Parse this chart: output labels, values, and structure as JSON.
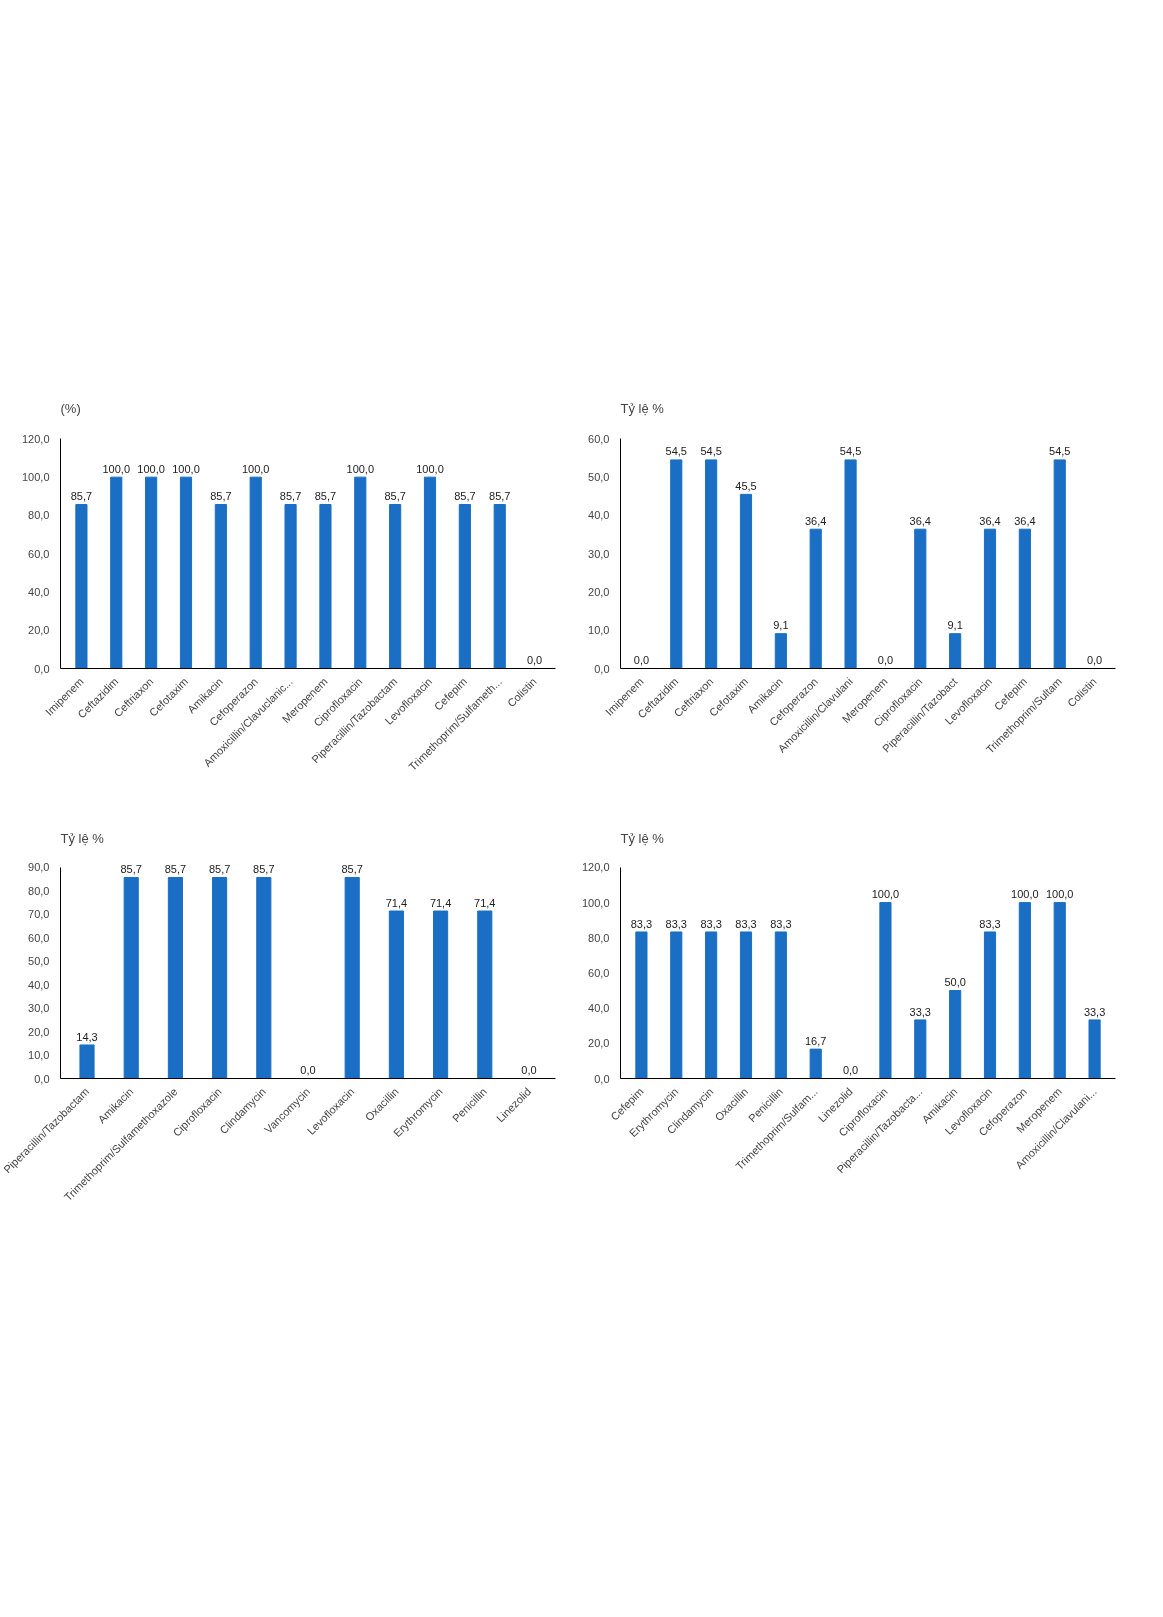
{
  "chart_data": [
    {
      "type": "bar",
      "ylabel": "(%)",
      "categories": [
        "Imipenem",
        "Ceftazidim",
        "Ceftriaxon",
        "Cefotaxim",
        "Amikacin",
        "Cefoperazon",
        "Amoxicillin/Clavuclanic...",
        "Meropenem",
        "Ciprofloxacin",
        "Piperacillin/Tazobactam",
        "Levofloxacin",
        "Cefepim",
        "Trimethoprim/Sulfameth...",
        "Colistin"
      ],
      "values": [
        85.7,
        100,
        100,
        100,
        85.7,
        100,
        85.7,
        85.7,
        100,
        85.7,
        100,
        85.7,
        85.7,
        0
      ],
      "value_labels": [
        "85,7",
        "100,0",
        "100,0",
        "100,0",
        "85,7",
        "100,0",
        "85,7",
        "85,7",
        "100,0",
        "85,7",
        "100,0",
        "85,7",
        "85,7",
        "0,0"
      ],
      "color": "#1a6fc4",
      "ylim": [
        0,
        120
      ],
      "yticks": [
        {
          "value": 0,
          "label": "0,0"
        },
        {
          "value": 20,
          "label": "20,0"
        },
        {
          "value": 40,
          "label": "40,0"
        },
        {
          "value": 60,
          "label": "60,0"
        },
        {
          "value": 80,
          "label": "80,0"
        },
        {
          "value": 100,
          "label": "100,0"
        },
        {
          "value": 120,
          "label": "120,0"
        }
      ]
    },
    {
      "type": "bar",
      "ylabel": "Tỷ lệ %",
      "categories": [
        "Imipenem",
        "Ceftazidim",
        "Ceftriaxon",
        "Cefotaxim",
        "Amikacin",
        "Cefoperazon",
        "Amoxicillin/Clavulani",
        "Meropenem",
        "Ciprofloxacin",
        "Piperacillin/Tazobact",
        "Levofloxacin",
        "Cefepim",
        "Trimethoprim/Sultam",
        "Colistin"
      ],
      "values": [
        0,
        54.5,
        54.5,
        45.5,
        9.1,
        36.4,
        54.5,
        0,
        36.4,
        9.1,
        36.4,
        36.4,
        54.5,
        0
      ],
      "value_labels": [
        "0,0",
        "54,5",
        "54,5",
        "45,5",
        "9,1",
        "36,4",
        "54,5",
        "0,0",
        "36,4",
        "9,1",
        "36,4",
        "36,4",
        "54,5",
        "0,0"
      ],
      "color": "#1a6fc4",
      "ylim": [
        0,
        60
      ],
      "yticks": [
        {
          "value": 0,
          "label": "0,0"
        },
        {
          "value": 10,
          "label": "10,0"
        },
        {
          "value": 20,
          "label": "20,0"
        },
        {
          "value": 30,
          "label": "30,0"
        },
        {
          "value": 40,
          "label": "40,0"
        },
        {
          "value": 50,
          "label": "50,0"
        },
        {
          "value": 60,
          "label": "60,0"
        }
      ]
    },
    {
      "type": "bar",
      "ylabel": "Tỷ lệ %",
      "categories": [
        "Piperacillin/Tazobactam",
        "Amikacin",
        "Trimethoprim/Sulfamethoxazole",
        "Ciprofloxacin",
        "Clindamycin",
        "Vancomycin",
        "Levofloxacin",
        "Oxacillin",
        "Erythromycin",
        "Penicillin",
        "Linezolid"
      ],
      "values": [
        14.3,
        85.7,
        85.7,
        85.7,
        85.7,
        0,
        85.7,
        71.4,
        71.4,
        71.4,
        0
      ],
      "value_labels": [
        "14,3",
        "85,7",
        "85,7",
        "85,7",
        "85,7",
        "0,0",
        "85,7",
        "71,4",
        "71,4",
        "71,4",
        "0,0"
      ],
      "color": "#1a6fc4",
      "ylim": [
        0,
        90
      ],
      "yticks": [
        {
          "value": 0,
          "label": "0,0"
        },
        {
          "value": 10,
          "label": "10,0"
        },
        {
          "value": 20,
          "label": "20,0"
        },
        {
          "value": 30,
          "label": "30,0"
        },
        {
          "value": 40,
          "label": "40,0"
        },
        {
          "value": 50,
          "label": "50,0"
        },
        {
          "value": 60,
          "label": "60,0"
        },
        {
          "value": 70,
          "label": "70,0"
        },
        {
          "value": 80,
          "label": "80,0"
        },
        {
          "value": 90,
          "label": "90,0"
        }
      ]
    },
    {
      "type": "bar",
      "ylabel": "Tỷ lệ %",
      "categories": [
        "Cefepim",
        "Erythromycin",
        "Clindamycin",
        "Oxacillin",
        "Penicillin",
        "Trimethoprim/Sulfam...",
        "Linezolid",
        "Ciprofloxacin",
        "Piperacillin/Tazobacta...",
        "Amikacin",
        "Levofloxacin",
        "Cefoperazon",
        "Meropenem",
        "Amoxicillin/Clavulani..."
      ],
      "values": [
        83.3,
        83.3,
        83.3,
        83.3,
        83.3,
        16.7,
        0,
        100,
        33.3,
        50,
        83.3,
        100,
        100,
        33.3
      ],
      "value_labels": [
        "83,3",
        "83,3",
        "83,3",
        "83,3",
        "83,3",
        "16,7",
        "0,0",
        "100,0",
        "33,3",
        "50,0",
        "83,3",
        "100,0",
        "100,0",
        "33,3"
      ],
      "color": "#1a6fc4",
      "ylim": [
        0,
        120
      ],
      "yticks": [
        {
          "value": 0,
          "label": "0,0"
        },
        {
          "value": 20,
          "label": "20,0"
        },
        {
          "value": 40,
          "label": "40,0"
        },
        {
          "value": 60,
          "label": "60,0"
        },
        {
          "value": 80,
          "label": "80,0"
        },
        {
          "value": 100,
          "label": "100,0"
        },
        {
          "value": 120,
          "label": "120,0"
        }
      ]
    }
  ]
}
